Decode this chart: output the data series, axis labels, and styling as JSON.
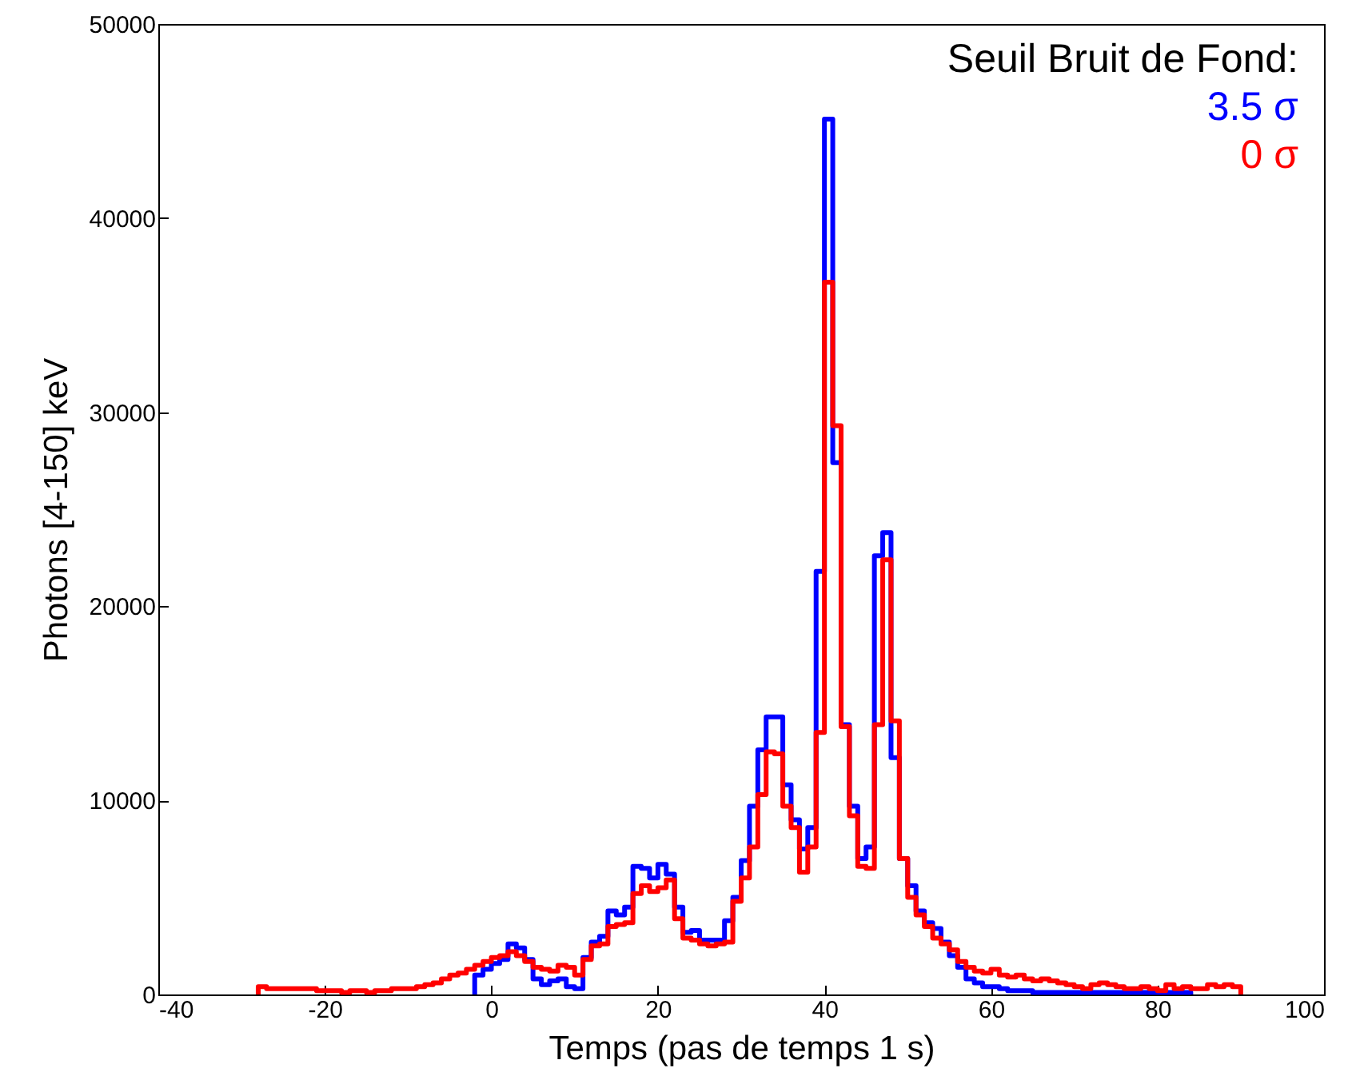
{
  "chart_data": {
    "type": "step",
    "xlabel": "Temps (pas de temps 1 s)",
    "ylabel": "Photons [4-150] keV",
    "legend_title": "Seuil Bruit de Fond:",
    "legend": "top right",
    "grid": false,
    "xlim": [
      -40,
      100
    ],
    "xticks": [
      -40,
      -20,
      0,
      20,
      40,
      60,
      80,
      100
    ],
    "ylim": [
      0,
      50000
    ],
    "yticks": [
      0,
      {
        "value": 10000,
        "label": "10000"
      },
      {
        "value": 20000,
        "label": "20000"
      },
      {
        "value": 30000,
        "label": "30000"
      },
      {
        "value": 40000,
        "label": "40000"
      },
      {
        "value": 50000,
        "label": "50000"
      }
    ],
    "series": [
      {
        "name": "3.5 σ",
        "color": "#0000ff",
        "x": [
          -2,
          -2,
          -1,
          0,
          1,
          2,
          3,
          4,
          5,
          6,
          7,
          8,
          9,
          10,
          11,
          12,
          13,
          14,
          15,
          16,
          17,
          18,
          19,
          20,
          21,
          22,
          23,
          24,
          25,
          26,
          27,
          28,
          29,
          30,
          31,
          32,
          33,
          34,
          35,
          36,
          37,
          38,
          39,
          40,
          41,
          42,
          43,
          44,
          45,
          46,
          47,
          48,
          49,
          50,
          51,
          52,
          53,
          54,
          55,
          56,
          57,
          58,
          59,
          60,
          61,
          62,
          63,
          64,
          65,
          66,
          67,
          68,
          69,
          70,
          71,
          72,
          73,
          74,
          75,
          76,
          77,
          78,
          79,
          80,
          81,
          82,
          83,
          84,
          84
        ],
        "values": [
          0,
          1000,
          1300,
          1600,
          1800,
          2600,
          2400,
          1800,
          800,
          500,
          700,
          800,
          400,
          300,
          1900,
          2700,
          3000,
          4300,
          4100,
          4500,
          6600,
          6500,
          6000,
          6700,
          6200,
          4500,
          3200,
          3300,
          2800,
          2800,
          2800,
          3800,
          5000,
          6900,
          9700,
          12600,
          14300,
          14300,
          10800,
          9000,
          7500,
          8600,
          21800,
          45100,
          27400,
          13900,
          9700,
          7000,
          7600,
          22600,
          23800,
          12200,
          7000,
          5600,
          4300,
          3700,
          3400,
          2700,
          2000,
          1400,
          800,
          600,
          400,
          400,
          300,
          200,
          200,
          200,
          100,
          100,
          100,
          100,
          100,
          100,
          100,
          100,
          100,
          100,
          100,
          100,
          100,
          100,
          100,
          100,
          100,
          100,
          100,
          100,
          0
        ]
      },
      {
        "name": "0 σ",
        "color": "#ff0000",
        "x": [
          -28,
          -28,
          -27,
          -26,
          -25,
          -24,
          -23,
          -22,
          -21,
          -20,
          -19,
          -18,
          -17,
          -16,
          -15,
          -14,
          -13,
          -12,
          -11,
          -10,
          -9,
          -8,
          -7,
          -6,
          -5,
          -4,
          -3,
          -2,
          -1,
          0,
          1,
          2,
          3,
          4,
          5,
          6,
          7,
          8,
          9,
          10,
          11,
          12,
          13,
          14,
          15,
          16,
          17,
          18,
          19,
          20,
          21,
          22,
          23,
          24,
          25,
          26,
          27,
          28,
          29,
          30,
          31,
          32,
          33,
          34,
          35,
          36,
          37,
          38,
          39,
          40,
          41,
          42,
          43,
          44,
          45,
          46,
          47,
          48,
          49,
          50,
          51,
          52,
          53,
          54,
          55,
          56,
          57,
          58,
          59,
          60,
          61,
          62,
          63,
          64,
          65,
          66,
          67,
          68,
          69,
          70,
          71,
          72,
          73,
          74,
          75,
          76,
          77,
          78,
          79,
          80,
          81,
          82,
          83,
          84,
          85,
          86,
          87,
          88,
          89,
          90,
          90
        ],
        "values": [
          0,
          400,
          300,
          300,
          300,
          300,
          300,
          300,
          200,
          200,
          200,
          100,
          200,
          200,
          100,
          200,
          200,
          300,
          300,
          300,
          400,
          500,
          600,
          800,
          1000,
          1100,
          1300,
          1500,
          1700,
          1900,
          2000,
          2200,
          2000,
          1700,
          1400,
          1300,
          1200,
          1500,
          1400,
          1000,
          1800,
          2500,
          2600,
          3500,
          3600,
          3700,
          5200,
          5600,
          5300,
          5500,
          5900,
          3900,
          2900,
          2800,
          2600,
          2500,
          2600,
          2700,
          4800,
          6000,
          7600,
          10300,
          12500,
          12400,
          9700,
          8600,
          6300,
          7600,
          13500,
          36700,
          29300,
          13800,
          9200,
          6600,
          6500,
          13900,
          22400,
          14100,
          7000,
          5000,
          4100,
          3500,
          2900,
          2600,
          2300,
          1700,
          1400,
          1200,
          1100,
          1300,
          1000,
          900,
          1000,
          800,
          700,
          800,
          700,
          600,
          500,
          400,
          300,
          500,
          600,
          500,
          400,
          300,
          300,
          400,
          300,
          200,
          500,
          300,
          400,
          300,
          300,
          500,
          400,
          500,
          400,
          400,
          0
        ]
      }
    ]
  }
}
